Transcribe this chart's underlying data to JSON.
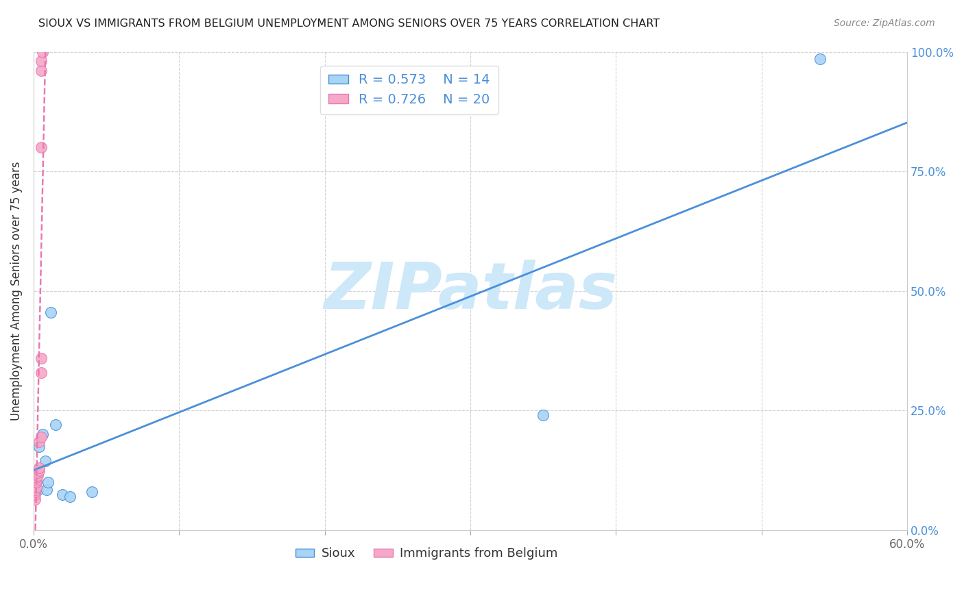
{
  "title": "SIOUX VS IMMIGRANTS FROM BELGIUM UNEMPLOYMENT AMONG SENIORS OVER 75 YEARS CORRELATION CHART",
  "source": "Source: ZipAtlas.com",
  "ylabel": "Unemployment Among Seniors over 75 years",
  "xlim": [
    0,
    0.6
  ],
  "ylim": [
    0,
    1.0
  ],
  "xticks": [
    0.0,
    0.1,
    0.2,
    0.3,
    0.4,
    0.5,
    0.6
  ],
  "xtick_labels": [
    "0.0%",
    "",
    "",
    "",
    "",
    "",
    "60.0%"
  ],
  "yticks": [
    0.0,
    0.25,
    0.5,
    0.75,
    1.0
  ],
  "ytick_labels_left": [
    "0.0%",
    "25.0%",
    "50.0%",
    "75.0%",
    "100.0%"
  ],
  "ytick_labels_right": [
    "0.0%",
    "25.0%",
    "50.0%",
    "75.0%",
    "100.0%"
  ],
  "sioux_x": [
    0.003,
    0.004,
    0.006,
    0.008,
    0.009,
    0.01,
    0.012,
    0.015,
    0.02,
    0.025,
    0.04,
    0.35,
    0.54,
    0.001
  ],
  "sioux_y": [
    0.085,
    0.175,
    0.2,
    0.145,
    0.085,
    0.1,
    0.455,
    0.22,
    0.075,
    0.07,
    0.08,
    0.24,
    0.985,
    0.105
  ],
  "belgium_x": [
    0.001,
    0.001,
    0.001,
    0.001,
    0.002,
    0.002,
    0.002,
    0.002,
    0.003,
    0.003,
    0.004,
    0.004,
    0.004,
    0.005,
    0.005,
    0.005,
    0.005,
    0.005,
    0.005,
    0.006
  ],
  "belgium_y": [
    0.065,
    0.075,
    0.08,
    0.085,
    0.09,
    0.1,
    0.105,
    0.11,
    0.115,
    0.12,
    0.125,
    0.13,
    0.185,
    0.195,
    0.33,
    0.36,
    0.8,
    0.96,
    0.98,
    1.0
  ],
  "sioux_color": "#a8d4f5",
  "belgium_color": "#f5a8c8",
  "sioux_line_color": "#4a90d9",
  "belgium_line_color": "#e87ab0",
  "legend_r_sioux": "R = 0.573",
  "legend_n_sioux": "N = 14",
  "legend_r_belgium": "R = 0.726",
  "legend_n_belgium": "N = 20",
  "legend_label_sioux": "Sioux",
  "legend_label_belgium": "Immigrants from Belgium",
  "watermark": "ZIPatlas",
  "watermark_color": "#cde8f8",
  "background_color": "#ffffff",
  "grid_color": "#cccccc"
}
